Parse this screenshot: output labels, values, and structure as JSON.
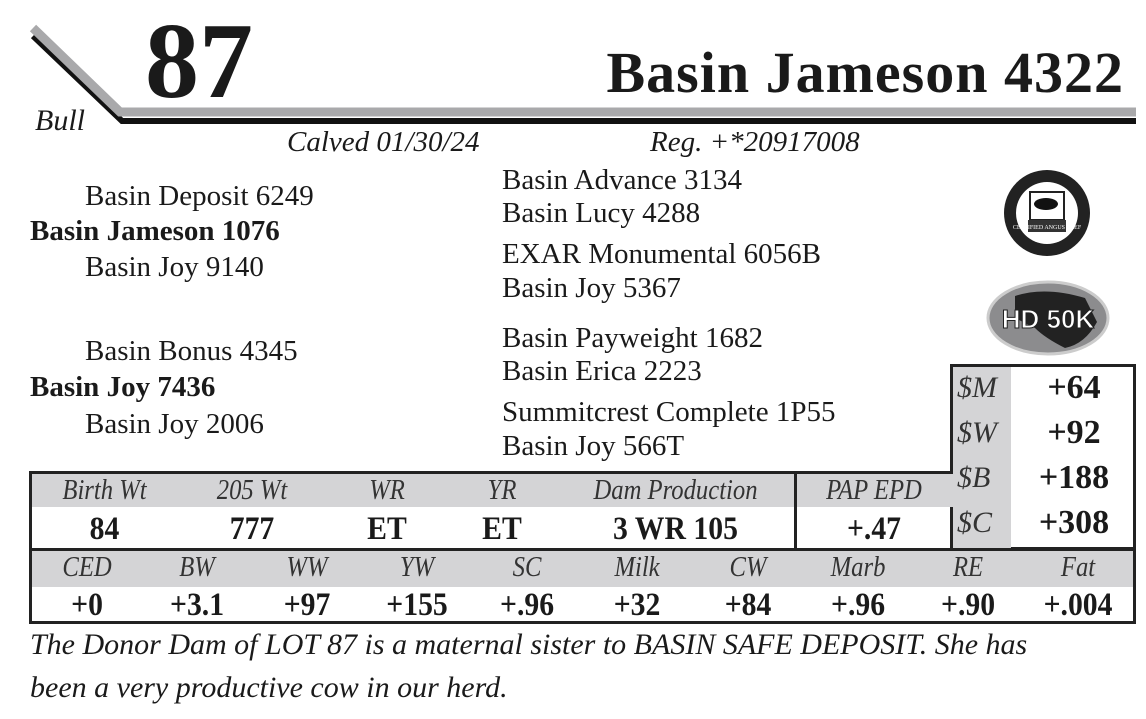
{
  "lot": {
    "number": "87",
    "type": "Bull",
    "name": "Basin Jameson 4322",
    "calved": "Calved 01/30/24",
    "reg": "Reg. +*20917008"
  },
  "pedigree": {
    "sire": {
      "name": "Basin Jameson 1076",
      "sire": "Basin Deposit 6249",
      "dam": "Basin Joy 9140",
      "gs_sire": "Basin Advance 3134",
      "gs_dam": "Basin Lucy 4288",
      "gd_sire": "EXAR Monumental 6056B",
      "gd_dam": "Basin Joy 5367"
    },
    "dam": {
      "name": "Basin Joy 7436",
      "sire": "Basin Bonus 4345",
      "dam": "Basin Joy 2006",
      "gs_sire": "Basin Payweight 1682",
      "gs_dam": "Basin Erica 2223",
      "gd_sire": "Summitcrest Complete 1P55",
      "gd_dam": "Basin Joy 566T"
    }
  },
  "logos": {
    "cab": "CERTIFIED ANGUS BEEF",
    "hd50k": "HD 50K"
  },
  "dollar_indexes": [
    {
      "label": "$M",
      "value": "+64"
    },
    {
      "label": "$W",
      "value": "+92"
    },
    {
      "label": "$B",
      "value": "+188"
    },
    {
      "label": "$C",
      "value": "+308"
    }
  ],
  "performance": {
    "headers": [
      "Birth Wt",
      "205 Wt",
      "WR",
      "YR",
      "Dam Production"
    ],
    "values": [
      "84",
      "777",
      "ET",
      "ET",
      "3 WR 105"
    ],
    "pap_label": "PAP EPD",
    "pap_value": "+.47"
  },
  "epds": {
    "headers": [
      "CED",
      "BW",
      "WW",
      "YW",
      "SC",
      "Milk",
      "CW",
      "Marb",
      "RE",
      "Fat"
    ],
    "values": [
      "+0",
      "+3.1",
      "+97",
      "+155",
      "+.96",
      "+32",
      "+84",
      "+.96",
      "+.90",
      "+.004"
    ]
  },
  "comment_line1": "The Donor Dam of LOT 87 is a maternal sister to BASIN SAFE DEPOSIT.  She has",
  "comment_line2": "been a very productive cow in our herd."
}
